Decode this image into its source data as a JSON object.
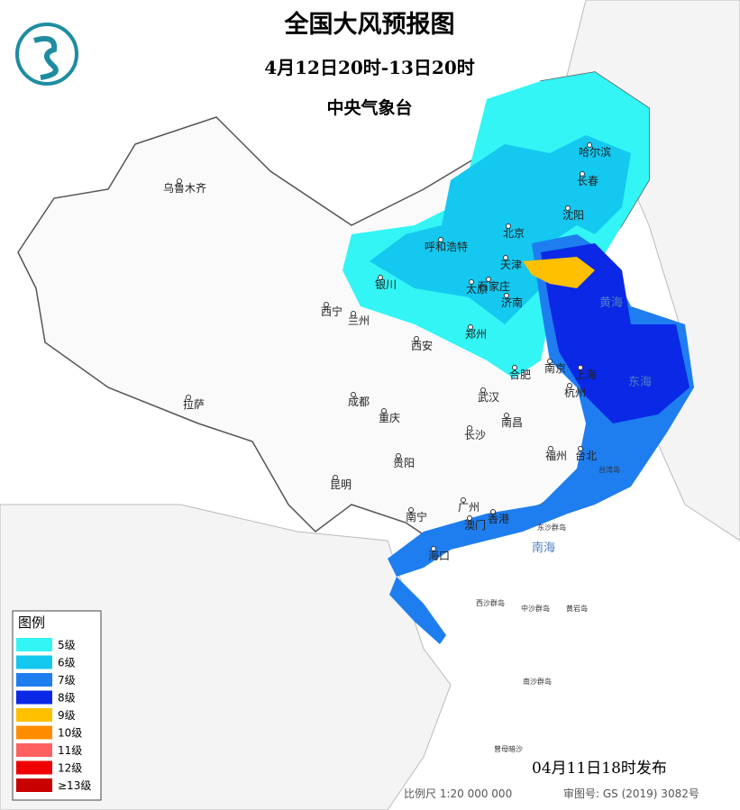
{
  "header": {
    "title": "全国大风预报图",
    "period": "4月12日20时-13日20时",
    "issuer": "中央气象台"
  },
  "cities": [
    "乌鲁木齐",
    "哈尔滨",
    "长春",
    "沈阳",
    "呼和浩特",
    "北京",
    "天津",
    "银川",
    "太原",
    "石家庄",
    "西宁",
    "兰州",
    "济南",
    "郑州",
    "西安",
    "合肥",
    "南京",
    "上海",
    "武汉",
    "杭州",
    "成都",
    "重庆",
    "南昌",
    "长沙",
    "拉萨",
    "贵阳",
    "福州",
    "台北",
    "昆明",
    "广州",
    "南宁",
    "澳门",
    "香港",
    "海口"
  ],
  "seas": [
    "黄海",
    "东海",
    "南海"
  ],
  "islands": [
    "台湾岛",
    "东沙群岛",
    "西沙群岛",
    "中沙群岛",
    "黄岩岛",
    "南沙群岛",
    "曾母暗沙"
  ],
  "legend": {
    "title": "图例",
    "items": [
      {
        "label": "5级",
        "color": "#33f5f5"
      },
      {
        "label": "6级",
        "color": "#14c8f0"
      },
      {
        "label": "7级",
        "color": "#1e7ef0"
      },
      {
        "label": "8级",
        "color": "#0a28e6"
      },
      {
        "label": "9级",
        "color": "#ffc000"
      },
      {
        "label": "10级",
        "color": "#ff8c00"
      },
      {
        "label": "11级",
        "color": "#ff6060"
      },
      {
        "label": "12级",
        "color": "#f00000"
      },
      {
        "label": "≥13级",
        "color": "#c80000"
      }
    ]
  },
  "footer": {
    "issued": "04月11日18时发布",
    "scale": "比例尺 1:20 000 000",
    "approval": "审图号: GS (2019) 3082号"
  }
}
